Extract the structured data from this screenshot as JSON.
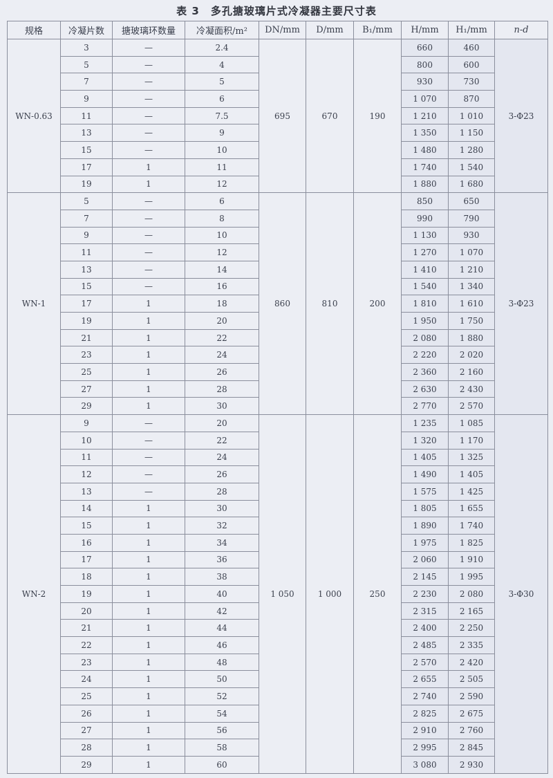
{
  "title": "表 3　多孔搪玻璃片式冷凝器主要尺寸表",
  "headers": [
    "规格",
    "冷凝片数",
    "搪玻璃环数量",
    "冷凝面积/m²",
    "DN/mm",
    "D/mm",
    "B₁/mm",
    "H/mm",
    "H₁/mm",
    "n-d"
  ],
  "sections": [
    {
      "model": "WN-0.63",
      "DN": "695",
      "D": "670",
      "B1": "190",
      "nd": "3-Φ23",
      "rows": [
        [
          "3",
          "—",
          "2.4",
          "660",
          "460"
        ],
        [
          "5",
          "—",
          "4",
          "800",
          "600"
        ],
        [
          "7",
          "—",
          "5",
          "930",
          "730"
        ],
        [
          "9",
          "—",
          "6",
          "1 070",
          "870"
        ],
        [
          "11",
          "—",
          "7.5",
          "1 210",
          "1 010"
        ],
        [
          "13",
          "—",
          "9",
          "1 350",
          "1 150"
        ],
        [
          "15",
          "—",
          "10",
          "1 480",
          "1 280"
        ],
        [
          "17",
          "1",
          "11",
          "1 740",
          "1 540"
        ],
        [
          "19",
          "1",
          "12",
          "1 880",
          "1 680"
        ]
      ]
    },
    {
      "model": "WN-1",
      "DN": "860",
      "D": "810",
      "B1": "200",
      "nd": "3-Φ23",
      "rows": [
        [
          "5",
          "—",
          "6",
          "850",
          "650"
        ],
        [
          "7",
          "—",
          "8",
          "990",
          "790"
        ],
        [
          "9",
          "—",
          "10",
          "1 130",
          "930"
        ],
        [
          "11",
          "—",
          "12",
          "1 270",
          "1 070"
        ],
        [
          "13",
          "—",
          "14",
          "1 410",
          "1 210"
        ],
        [
          "15",
          "—",
          "16",
          "1 540",
          "1 340"
        ],
        [
          "17",
          "1",
          "18",
          "1 810",
          "1 610"
        ],
        [
          "19",
          "1",
          "20",
          "1 950",
          "1 750"
        ],
        [
          "21",
          "1",
          "22",
          "2 080",
          "1 880"
        ],
        [
          "23",
          "1",
          "24",
          "2 220",
          "2 020"
        ],
        [
          "25",
          "1",
          "26",
          "2 360",
          "2 160"
        ],
        [
          "27",
          "1",
          "28",
          "2 630",
          "2 430"
        ],
        [
          "29",
          "1",
          "30",
          "2 770",
          "2 570"
        ]
      ]
    },
    {
      "model": "WN-2",
      "DN": "1 050",
      "D": "1 000",
      "B1": "250",
      "nd": "3-Φ30",
      "rows": [
        [
          "9",
          "—",
          "20",
          "1 235",
          "1 085"
        ],
        [
          "10",
          "—",
          "22",
          "1 320",
          "1 170"
        ],
        [
          "11",
          "—",
          "24",
          "1 405",
          "1 325"
        ],
        [
          "12",
          "—",
          "26",
          "1 490",
          "1 405"
        ],
        [
          "13",
          "—",
          "28",
          "1 575",
          "1 425"
        ],
        [
          "14",
          "1",
          "30",
          "1 805",
          "1 655"
        ],
        [
          "15",
          "1",
          "32",
          "1 890",
          "1 740"
        ],
        [
          "16",
          "1",
          "34",
          "1 975",
          "1 825"
        ],
        [
          "17",
          "1",
          "36",
          "2 060",
          "1 910"
        ],
        [
          "18",
          "1",
          "38",
          "2 145",
          "1 995"
        ],
        [
          "19",
          "1",
          "40",
          "2 230",
          "2 080"
        ],
        [
          "20",
          "1",
          "42",
          "2 315",
          "2 165"
        ],
        [
          "21",
          "1",
          "44",
          "2 400",
          "2 250"
        ],
        [
          "22",
          "1",
          "46",
          "2 485",
          "2 335"
        ],
        [
          "23",
          "1",
          "48",
          "2 570",
          "2 420"
        ],
        [
          "24",
          "1",
          "50",
          "2 655",
          "2 505"
        ],
        [
          "25",
          "1",
          "52",
          "2 740",
          "2 590"
        ],
        [
          "26",
          "1",
          "54",
          "2 825",
          "2 675"
        ],
        [
          "27",
          "1",
          "56",
          "2 910",
          "2 760"
        ],
        [
          "28",
          "1",
          "58",
          "2 995",
          "2 845"
        ],
        [
          "29",
          "1",
          "60",
          "3 080",
          "2 930"
        ]
      ]
    }
  ]
}
